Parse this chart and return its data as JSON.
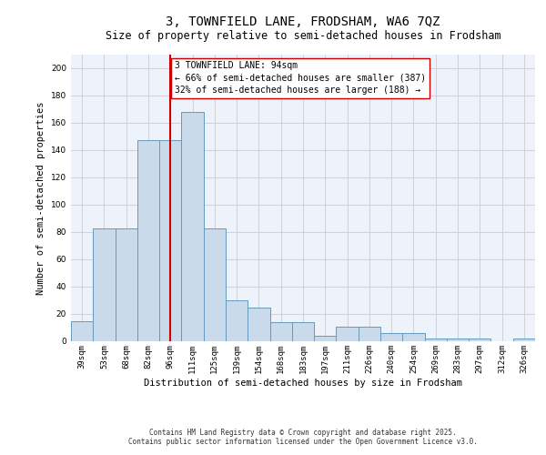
{
  "title_line1": "3, TOWNFIELD LANE, FRODSHAM, WA6 7QZ",
  "title_line2": "Size of property relative to semi-detached houses in Frodsham",
  "xlabel": "Distribution of semi-detached houses by size in Frodsham",
  "ylabel": "Number of semi-detached properties",
  "bins": [
    "39sqm",
    "53sqm",
    "68sqm",
    "82sqm",
    "96sqm",
    "111sqm",
    "125sqm",
    "139sqm",
    "154sqm",
    "168sqm",
    "183sqm",
    "197sqm",
    "211sqm",
    "226sqm",
    "240sqm",
    "254sqm",
    "269sqm",
    "283sqm",
    "297sqm",
    "312sqm",
    "326sqm"
  ],
  "bar_heights": [
    15,
    83,
    83,
    147,
    147,
    168,
    83,
    30,
    25,
    14,
    14,
    4,
    11,
    11,
    6,
    6,
    2,
    2,
    2,
    0,
    2
  ],
  "bar_color": "#c9daea",
  "bar_edge_color": "#6699bb",
  "red_line_index": 4,
  "red_line_color": "#cc0000",
  "annotation_box_text": "3 TOWNFIELD LANE: 94sqm\n← 66% of semi-detached houses are smaller (387)\n32% of semi-detached houses are larger (188) →",
  "annotation_box_color": "#cc0000",
  "ylim": [
    0,
    210
  ],
  "yticks": [
    0,
    20,
    40,
    60,
    80,
    100,
    120,
    140,
    160,
    180,
    200
  ],
  "grid_color": "#cccccc",
  "background_color": "#eef2fa",
  "footer_text": "Contains HM Land Registry data © Crown copyright and database right 2025.\nContains public sector information licensed under the Open Government Licence v3.0.",
  "title_fontsize": 10,
  "subtitle_fontsize": 8.5,
  "axis_label_fontsize": 7.5,
  "tick_fontsize": 6.5,
  "annotation_fontsize": 7.0,
  "footer_fontsize": 5.5
}
